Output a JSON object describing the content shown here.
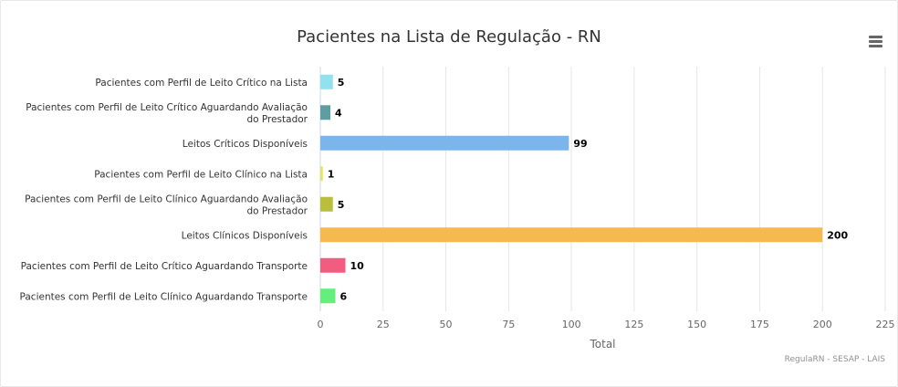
{
  "chart_data": {
    "type": "bar",
    "orientation": "horizontal",
    "title": "Pacientes na Lista de Regulação - RN",
    "xlabel": "Total",
    "categories": [
      [
        "Pacientes com Perfil de Leito Crítico na Lista"
      ],
      [
        "Pacientes com Perfil de Leito Crítico Aguardando Avaliação",
        "do Prestador"
      ],
      [
        "Leitos Críticos Disponíveis"
      ],
      [
        "Pacientes com Perfil de Leito Clínico na Lista"
      ],
      [
        "Pacientes com Perfil de Leito Clínico Aguardando Avaliação",
        "do Prestador"
      ],
      [
        "Leitos Clínicos Disponíveis"
      ],
      [
        "Pacientes com Perfil de Leito Crítico Aguardando Transporte"
      ],
      [
        "Pacientes com Perfil de Leito Clínico Aguardando Transporte"
      ]
    ],
    "values": [
      5,
      4,
      99,
      1,
      5,
      200,
      10,
      6
    ],
    "colors": [
      "#91e1ef",
      "#5f9ea0",
      "#7cb5ec",
      "#e4e46a",
      "#b9bf3c",
      "#f5b94e",
      "#f15c80",
      "#64ee7c"
    ],
    "xlim": [
      0,
      225
    ],
    "xticks": [
      "0",
      "25",
      "50",
      "75",
      "100",
      "125",
      "150",
      "175",
      "200",
      "225"
    ],
    "grid": true,
    "legend": "none"
  },
  "credits": "RegulaRN - SESAP - LAIS",
  "menu_icon": "hamburger-menu-icon"
}
